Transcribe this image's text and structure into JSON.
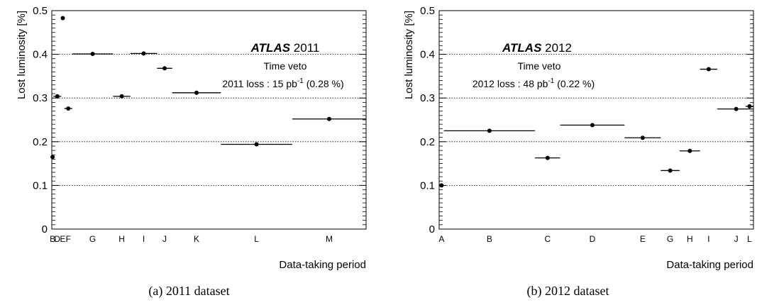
{
  "chart_data": [
    {
      "type": "scatter",
      "title": "",
      "xlabel": "Data-taking period",
      "ylabel": "Lost luminosity [%]",
      "ylim": [
        0,
        0.5
      ],
      "yticks": [
        "0",
        "0.1",
        "0.2",
        "0.3",
        "0.4",
        "0.5"
      ],
      "grid": "horizontal dotted",
      "annotations": {
        "experiment": "ATLAS",
        "year": "2011",
        "veto": "Time veto",
        "loss_prefix": "2011 loss : 15 pb",
        "loss_sup": "-1",
        "loss_suffix": " (0.28 %)"
      },
      "periods": [
        {
          "label": "B",
          "x_start": 0.0,
          "x_end": 0.005,
          "value": 0.165
        },
        {
          "label": "D",
          "x_start": 0.005,
          "x_end": 0.03,
          "value": 0.304
        },
        {
          "label": "E",
          "x_start": 0.03,
          "x_end": 0.04,
          "value": 0.483
        },
        {
          "label": "F",
          "x_start": 0.04,
          "x_end": 0.065,
          "value": 0.276
        },
        {
          "label": "G",
          "x_start": 0.065,
          "x_end": 0.195,
          "value": 0.401
        },
        {
          "label": "H",
          "x_start": 0.195,
          "x_end": 0.25,
          "value": 0.304
        },
        {
          "label": "I",
          "x_start": 0.25,
          "x_end": 0.335,
          "value": 0.402
        },
        {
          "label": "J",
          "x_start": 0.335,
          "x_end": 0.383,
          "value": 0.368
        },
        {
          "label": "K",
          "x_start": 0.383,
          "x_end": 0.538,
          "value": 0.312
        },
        {
          "label": "L",
          "x_start": 0.538,
          "x_end": 0.765,
          "value": 0.194
        },
        {
          "label": "M",
          "x_start": 0.765,
          "x_end": 1.0,
          "value": 0.252
        }
      ]
    },
    {
      "type": "scatter",
      "title": "",
      "xlabel": "Data-taking period",
      "ylabel": "Lost luminosity [%]",
      "ylim": [
        0,
        0.5
      ],
      "yticks": [
        "0",
        "0.1",
        "0.2",
        "0.3",
        "0.4",
        "0.5"
      ],
      "grid": "horizontal dotted",
      "annotations": {
        "experiment": "ATLAS",
        "year": "2012",
        "veto": "Time veto",
        "loss_prefix": "2012 loss : 48 pb",
        "loss_sup": "-1",
        "loss_suffix": " (0.22 %)"
      },
      "periods": [
        {
          "label": "A",
          "x_start": 0.0,
          "x_end": 0.015,
          "value": 0.1
        },
        {
          "label": "B",
          "x_start": 0.015,
          "x_end": 0.305,
          "value": 0.225
        },
        {
          "label": "C",
          "x_start": 0.305,
          "x_end": 0.385,
          "value": 0.163
        },
        {
          "label": "D",
          "x_start": 0.385,
          "x_end": 0.59,
          "value": 0.238
        },
        {
          "label": "E",
          "x_start": 0.59,
          "x_end": 0.705,
          "value": 0.209
        },
        {
          "label": "G",
          "x_start": 0.705,
          "x_end": 0.765,
          "value": 0.134
        },
        {
          "label": "H",
          "x_start": 0.765,
          "x_end": 0.83,
          "value": 0.179
        },
        {
          "label": "I",
          "x_start": 0.83,
          "x_end": 0.885,
          "value": 0.366
        },
        {
          "label": "J",
          "x_start": 0.885,
          "x_end": 1.005,
          "value": 0.275
        },
        {
          "label": "L",
          "x_start": 0.975,
          "x_end": 1.0,
          "value": 0.281
        }
      ]
    }
  ],
  "captions": [
    "(a) 2011 dataset",
    "(b) 2012 dataset"
  ]
}
